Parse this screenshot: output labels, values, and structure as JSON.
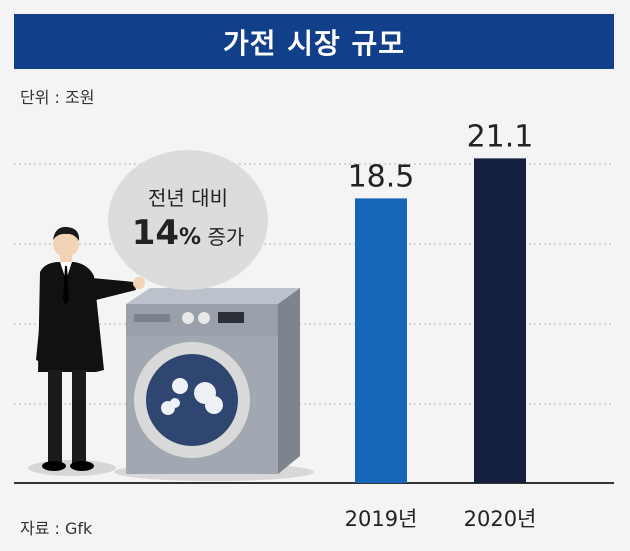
{
  "header": {
    "title": "가전 시장 규모"
  },
  "unit_label": "단위 : 조원",
  "source_label": "자료 : Gfk",
  "callout": {
    "line1": "전년 대비",
    "number": "14",
    "percent": "%",
    "suffix": "증가"
  },
  "colors": {
    "title_bg": "#123f8a",
    "bar_2019": "#1565b8",
    "bar_2020": "#15203e"
  },
  "icons": [
    "businessman-illustration",
    "washing-machine-illustration"
  ],
  "chart_data": {
    "type": "bar",
    "title": "가전 시장 규모",
    "categories": [
      "2019년",
      "2020년"
    ],
    "values": [
      18.5,
      21.1
    ],
    "value_labels": [
      "18.5",
      "21.1"
    ],
    "ylim": [
      0,
      26
    ],
    "grid": true
  }
}
